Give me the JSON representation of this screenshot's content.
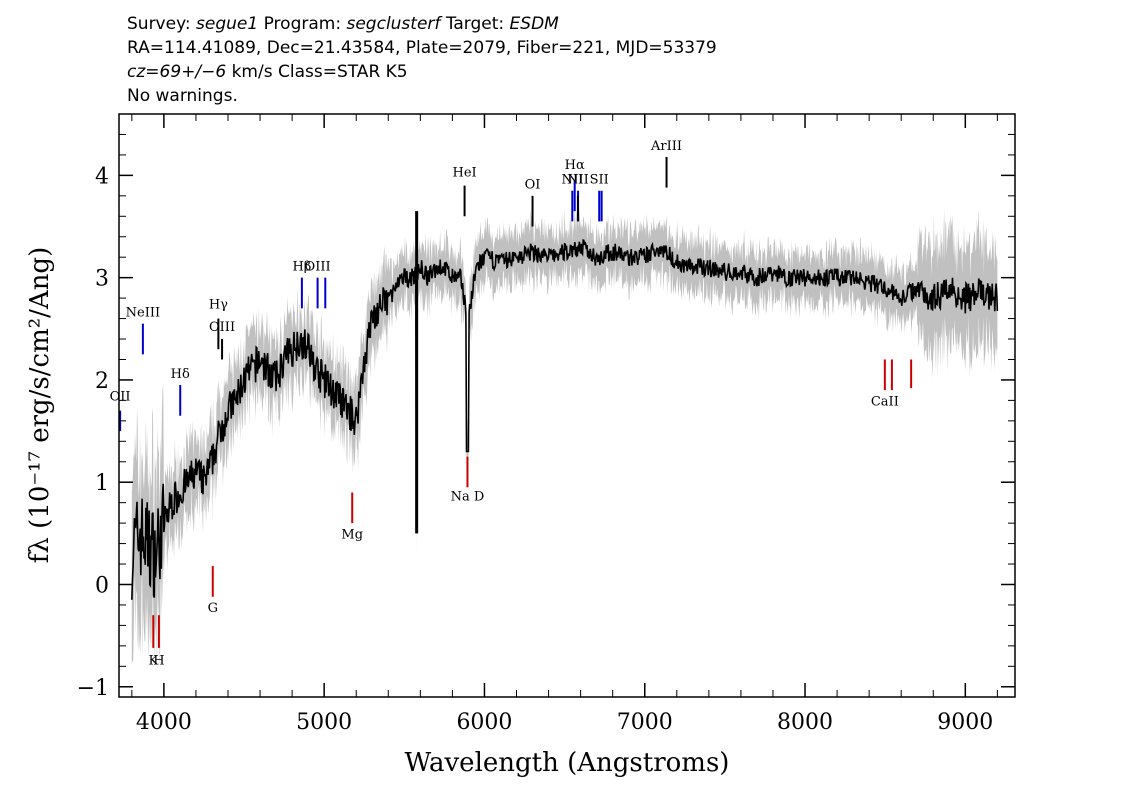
{
  "header": {
    "line1": {
      "survey_label": "Survey:",
      "survey": "segue1",
      "program_label": "Program:",
      "program": "segclusterf",
      "target_label": "Target:",
      "target": "ESDM"
    },
    "line2": "RA=114.41089, Dec=21.43584, Plate=2079, Fiber=221, MJD=53379",
    "line3": {
      "cz": "cz=69+/−6",
      "rest": " km/s Class=STAR K5"
    },
    "line4": "No warnings."
  },
  "chart_data": {
    "type": "line",
    "xlabel": "Wavelength (Angstroms)",
    "ylabel": "fλ (10⁻¹⁷ erg/s/cm²/Ang)",
    "xlim": [
      3720,
      9310
    ],
    "ylim": [
      -1.1,
      4.6
    ],
    "x_ticks": [
      4000,
      5000,
      6000,
      7000,
      8000,
      9000
    ],
    "y_ticks": [
      -1,
      0,
      1,
      2,
      3,
      4
    ],
    "colors": {
      "flux": "#000000",
      "error": "#c0c0c0",
      "emission": "#0000cc",
      "absorption": "#cc0000",
      "neutral": "#000000"
    },
    "series": [
      {
        "x": [
          3800,
          3850,
          3900,
          3950,
          4000,
          4050,
          4100,
          4150,
          4200,
          4250,
          4300,
          4350,
          4400,
          4450,
          4500,
          4550,
          4600,
          4650,
          4700,
          4750,
          4800,
          4850,
          4900,
          4950,
          5000,
          5050,
          5100,
          5150,
          5200,
          5250,
          5300,
          5350,
          5400,
          5450,
          5500,
          5550,
          5600,
          5650,
          5700,
          5750,
          5800,
          5850,
          5900,
          5950,
          6000,
          6100,
          6200,
          6300,
          6400,
          6500,
          6600,
          6700,
          6800,
          6900,
          7000,
          7100,
          7200,
          7300,
          7400,
          7500,
          7600,
          7700,
          7800,
          7900,
          8000,
          8100,
          8200,
          8300,
          8400,
          8500,
          8600,
          8700,
          8800,
          8900,
          9000,
          9100,
          9200
        ],
        "y": [
          0.3,
          0.5,
          0.4,
          0.3,
          0.6,
          0.8,
          0.9,
          1.0,
          1.1,
          1.0,
          1.2,
          1.5,
          1.7,
          1.8,
          2.0,
          2.1,
          2.2,
          2.1,
          2.0,
          2.2,
          2.3,
          2.4,
          2.3,
          2.1,
          2.0,
          1.9,
          1.8,
          1.7,
          1.6,
          2.2,
          2.6,
          2.7,
          2.8,
          2.9,
          3.0,
          3.0,
          3.1,
          3.0,
          3.1,
          3.1,
          3.0,
          3.0,
          2.6,
          3.1,
          3.2,
          3.15,
          3.2,
          3.25,
          3.2,
          3.25,
          3.3,
          3.2,
          3.25,
          3.2,
          3.2,
          3.3,
          3.15,
          3.1,
          3.1,
          3.05,
          3.05,
          3.0,
          3.05,
          3.0,
          3.0,
          3.0,
          3.0,
          3.0,
          2.95,
          2.9,
          2.8,
          2.9,
          2.8,
          2.9,
          2.8,
          2.85,
          2.8
        ]
      }
    ],
    "lines": [
      {
        "label": "OII",
        "x": 3727,
        "kind": "emission",
        "ymin": 1.5,
        "ymax": 1.7,
        "label_y": 1.8
      },
      {
        "label": "NeIII",
        "x": 3869,
        "kind": "emission",
        "ymin": 2.25,
        "ymax": 2.55,
        "label_y": 2.62
      },
      {
        "label": "Hδ",
        "x": 4102,
        "kind": "emission",
        "ymin": 1.65,
        "ymax": 1.95,
        "label_y": 2.02
      },
      {
        "label": "Hγ",
        "x": 4340,
        "kind": "neutral",
        "ymin": 2.3,
        "ymax": 2.6,
        "label_y": 2.7
      },
      {
        "label": "OIII",
        "x": 4363,
        "kind": "neutral",
        "ymin": 2.2,
        "ymax": 2.4,
        "label_y": 2.48
      },
      {
        "label": "Hβ",
        "x": 4861,
        "kind": "emission",
        "ymin": 2.7,
        "ymax": 3.0,
        "label_y": 3.07
      },
      {
        "label": "OIII",
        "x": 4959,
        "kind": "emission",
        "ymin": 2.7,
        "ymax": 3.0,
        "label_y": 3.07
      },
      {
        "label": "",
        "x": 5007,
        "kind": "emission",
        "ymin": 2.7,
        "ymax": 3.0,
        "label_y": 3.07
      },
      {
        "label": "HeI",
        "x": 5876,
        "kind": "neutral",
        "ymin": 3.6,
        "ymax": 3.9,
        "label_y": 3.99
      },
      {
        "label": "OI",
        "x": 6300,
        "kind": "neutral",
        "ymin": 3.5,
        "ymax": 3.8,
        "label_y": 3.87
      },
      {
        "label": "NII",
        "x": 6548,
        "kind": "emission",
        "ymin": 3.55,
        "ymax": 3.85,
        "label_y": 3.92
      },
      {
        "label": "Hα",
        "x": 6563,
        "kind": "emission",
        "ymin": 3.65,
        "ymax": 3.95,
        "label_y": 4.06
      },
      {
        "label": "",
        "x": 6584,
        "kind": "emission",
        "ymin": 3.55,
        "ymax": 3.85,
        "label_y": 3.92
      },
      {
        "label": "NII",
        "x": 6583,
        "kind": "neutral",
        "ymin": 3.55,
        "ymax": 3.8,
        "label_y": 3.92
      },
      {
        "label": "SII",
        "x": 6716,
        "kind": "emission",
        "ymin": 3.55,
        "ymax": 3.85,
        "label_y": 3.92
      },
      {
        "label": "",
        "x": 6731,
        "kind": "emission",
        "ymin": 3.55,
        "ymax": 3.85,
        "label_y": 3.92
      },
      {
        "label": "ArIII",
        "x": 7136,
        "kind": "neutral",
        "ymin": 3.88,
        "ymax": 4.18,
        "label_y": 4.25
      },
      {
        "label": "K",
        "x": 3934,
        "kind": "absorption",
        "ymin": -0.62,
        "ymax": -0.3,
        "label_y": -0.78
      },
      {
        "label": "H",
        "x": 3969,
        "kind": "absorption",
        "ymin": -0.62,
        "ymax": -0.3,
        "label_y": -0.78
      },
      {
        "label": "G",
        "x": 4305,
        "kind": "absorption",
        "ymin": -0.12,
        "ymax": 0.18,
        "label_y": -0.27
      },
      {
        "label": "Mg",
        "x": 5175,
        "kind": "absorption",
        "ymin": 0.6,
        "ymax": 0.9,
        "label_y": 0.45
      },
      {
        "label": "Na D",
        "x": 5894,
        "kind": "absorption",
        "ymin": 0.95,
        "ymax": 1.25,
        "label_y": 0.82
      },
      {
        "label": "CaII",
        "x": 8498,
        "kind": "absorption",
        "ymin": 1.9,
        "ymax": 2.2,
        "label_y": 1.75
      },
      {
        "label": "",
        "x": 8542,
        "kind": "absorption",
        "ymin": 1.9,
        "ymax": 2.2,
        "label_y": 1.75
      },
      {
        "label": "",
        "x": 8662,
        "kind": "absorption",
        "ymin": 1.92,
        "ymax": 2.2,
        "label_y": 1.75
      }
    ]
  }
}
